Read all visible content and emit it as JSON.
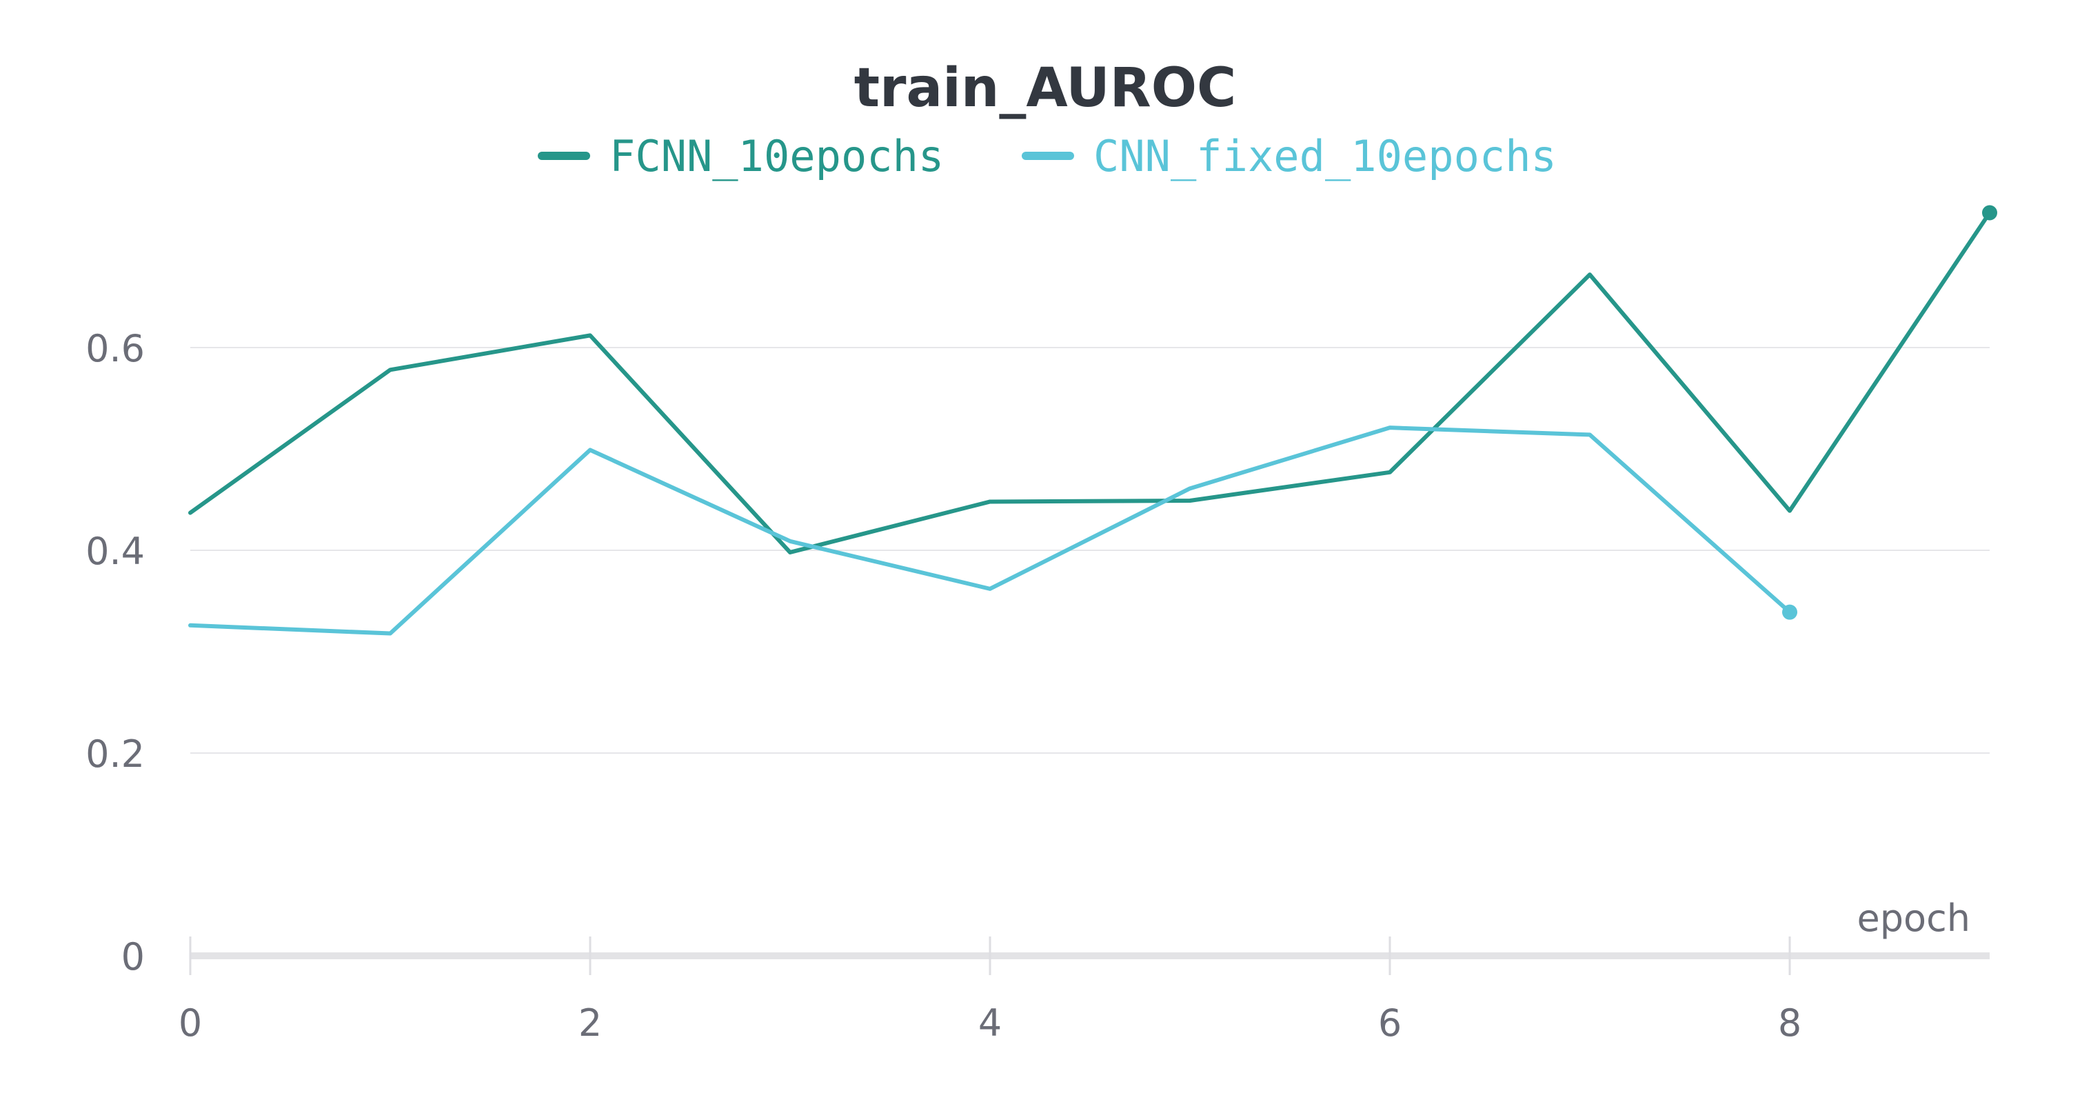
{
  "chart_data": {
    "type": "line",
    "title": "train_AUROC",
    "xlabel": "epoch",
    "ylabel": "",
    "xlim": [
      0,
      9
    ],
    "ylim": [
      0,
      0.75
    ],
    "x_ticks": [
      0,
      2,
      4,
      6,
      8
    ],
    "y_ticks": [
      0,
      0.2,
      0.4,
      0.6
    ],
    "x_tick_labels": [
      "0",
      "2",
      "4",
      "6",
      "8"
    ],
    "y_tick_labels": [
      "0",
      "0.2",
      "0.4",
      "0.6"
    ],
    "grid": "horizontal",
    "legend_position": "top-center",
    "series": [
      {
        "name": "FCNN_10epochs",
        "color": "#26968a",
        "x": [
          0,
          1,
          2,
          3,
          4,
          5,
          6,
          7,
          8,
          9
        ],
        "values": [
          0.437,
          0.578,
          0.612,
          0.398,
          0.448,
          0.449,
          0.477,
          0.672,
          0.439,
          0.733
        ]
      },
      {
        "name": "CNN_fixed_10epochs",
        "color": "#5ac4d8",
        "x": [
          0,
          1,
          2,
          3,
          4,
          5,
          6,
          7,
          8
        ],
        "values": [
          0.326,
          0.318,
          0.499,
          0.409,
          0.362,
          0.461,
          0.521,
          0.514,
          0.339
        ]
      }
    ]
  }
}
